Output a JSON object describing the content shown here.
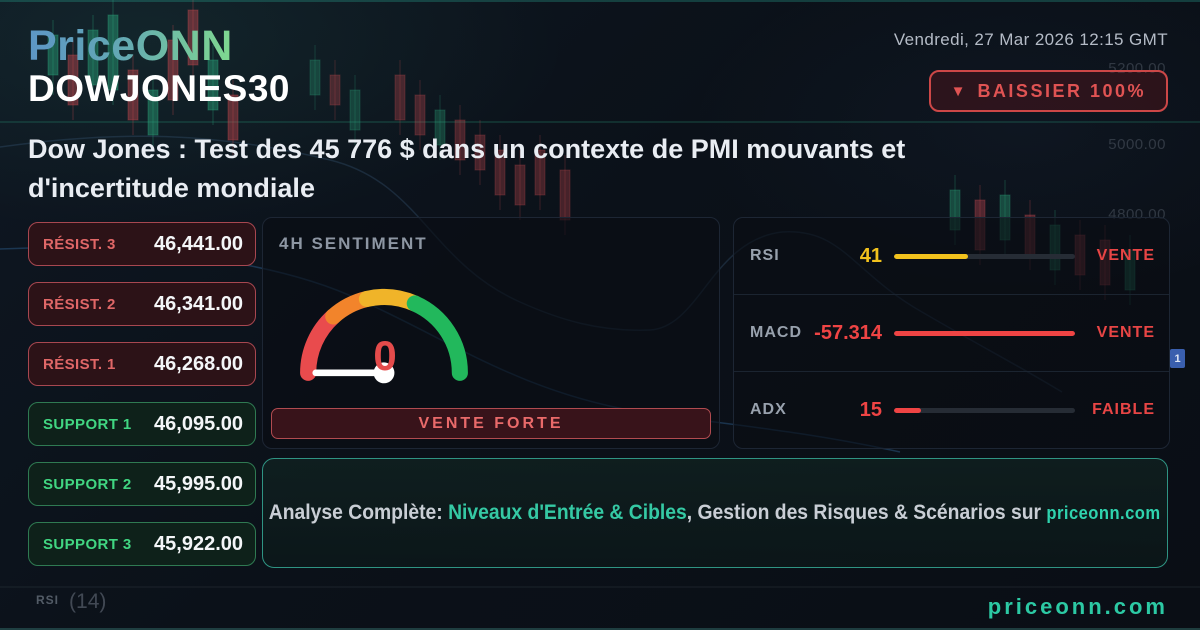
{
  "brand": {
    "logo": "PriceONN",
    "watermark": "priceonn.com"
  },
  "header": {
    "timestamp": "Vendredi, 27 Mar 2026 12:15 GMT",
    "symbol": "DOWJONES30",
    "trend_badge": {
      "icon": "▼",
      "label": "BAISSIER 100%"
    }
  },
  "headline": "Dow Jones : Test des 45 776 $ dans un contexte de PMI mouvants et d'incertitude mondiale",
  "levels": {
    "resistances": [
      {
        "label": "RÉSIST. 3",
        "value": "46,441.00"
      },
      {
        "label": "RÉSIST. 2",
        "value": "46,341.00"
      },
      {
        "label": "RÉSIST. 1",
        "value": "46,268.00"
      }
    ],
    "supports": [
      {
        "label": "SUPPORT 1",
        "value": "46,095.00"
      },
      {
        "label": "SUPPORT 2",
        "value": "45,995.00"
      },
      {
        "label": "SUPPORT 3",
        "value": "45,922.00"
      }
    ]
  },
  "sentiment": {
    "title": "4H SENTIMENT",
    "value": "0",
    "verdict": "VENTE FORTE"
  },
  "indicators": [
    {
      "name": "RSI",
      "value": "41",
      "status": "VENTE",
      "percent": 41,
      "value_color": "#f2c21d"
    },
    {
      "name": "MACD",
      "value": "-57.314",
      "status": "VENTE",
      "percent": 100,
      "value_color": "#ef4444"
    },
    {
      "name": "ADX",
      "value": "15",
      "status": "FAIBLE",
      "percent": 15,
      "value_color": "#ef4444"
    }
  ],
  "footer_banner": {
    "prefix": "Analyse Complète: ",
    "highlight": "Niveaux d'Entrée & Cibles",
    "middle": ", Gestion des Risques & Scénarios sur ",
    "site": "priceonn.com"
  },
  "background_chart": {
    "axis_labels": [
      "5200.00",
      "5000.00",
      "4800.00"
    ],
    "pane_label": "RSI",
    "pane_value": "(14)",
    "axis_tag": "1"
  },
  "colors": {
    "bearish_red": "#e05353",
    "support_green": "#41d682",
    "accent_teal": "#2cc9a4",
    "gauge_red": "#e94b4d",
    "gauge_orange": "#f2842b",
    "gauge_yellow": "#f0b429",
    "gauge_green": "#22b85c"
  }
}
